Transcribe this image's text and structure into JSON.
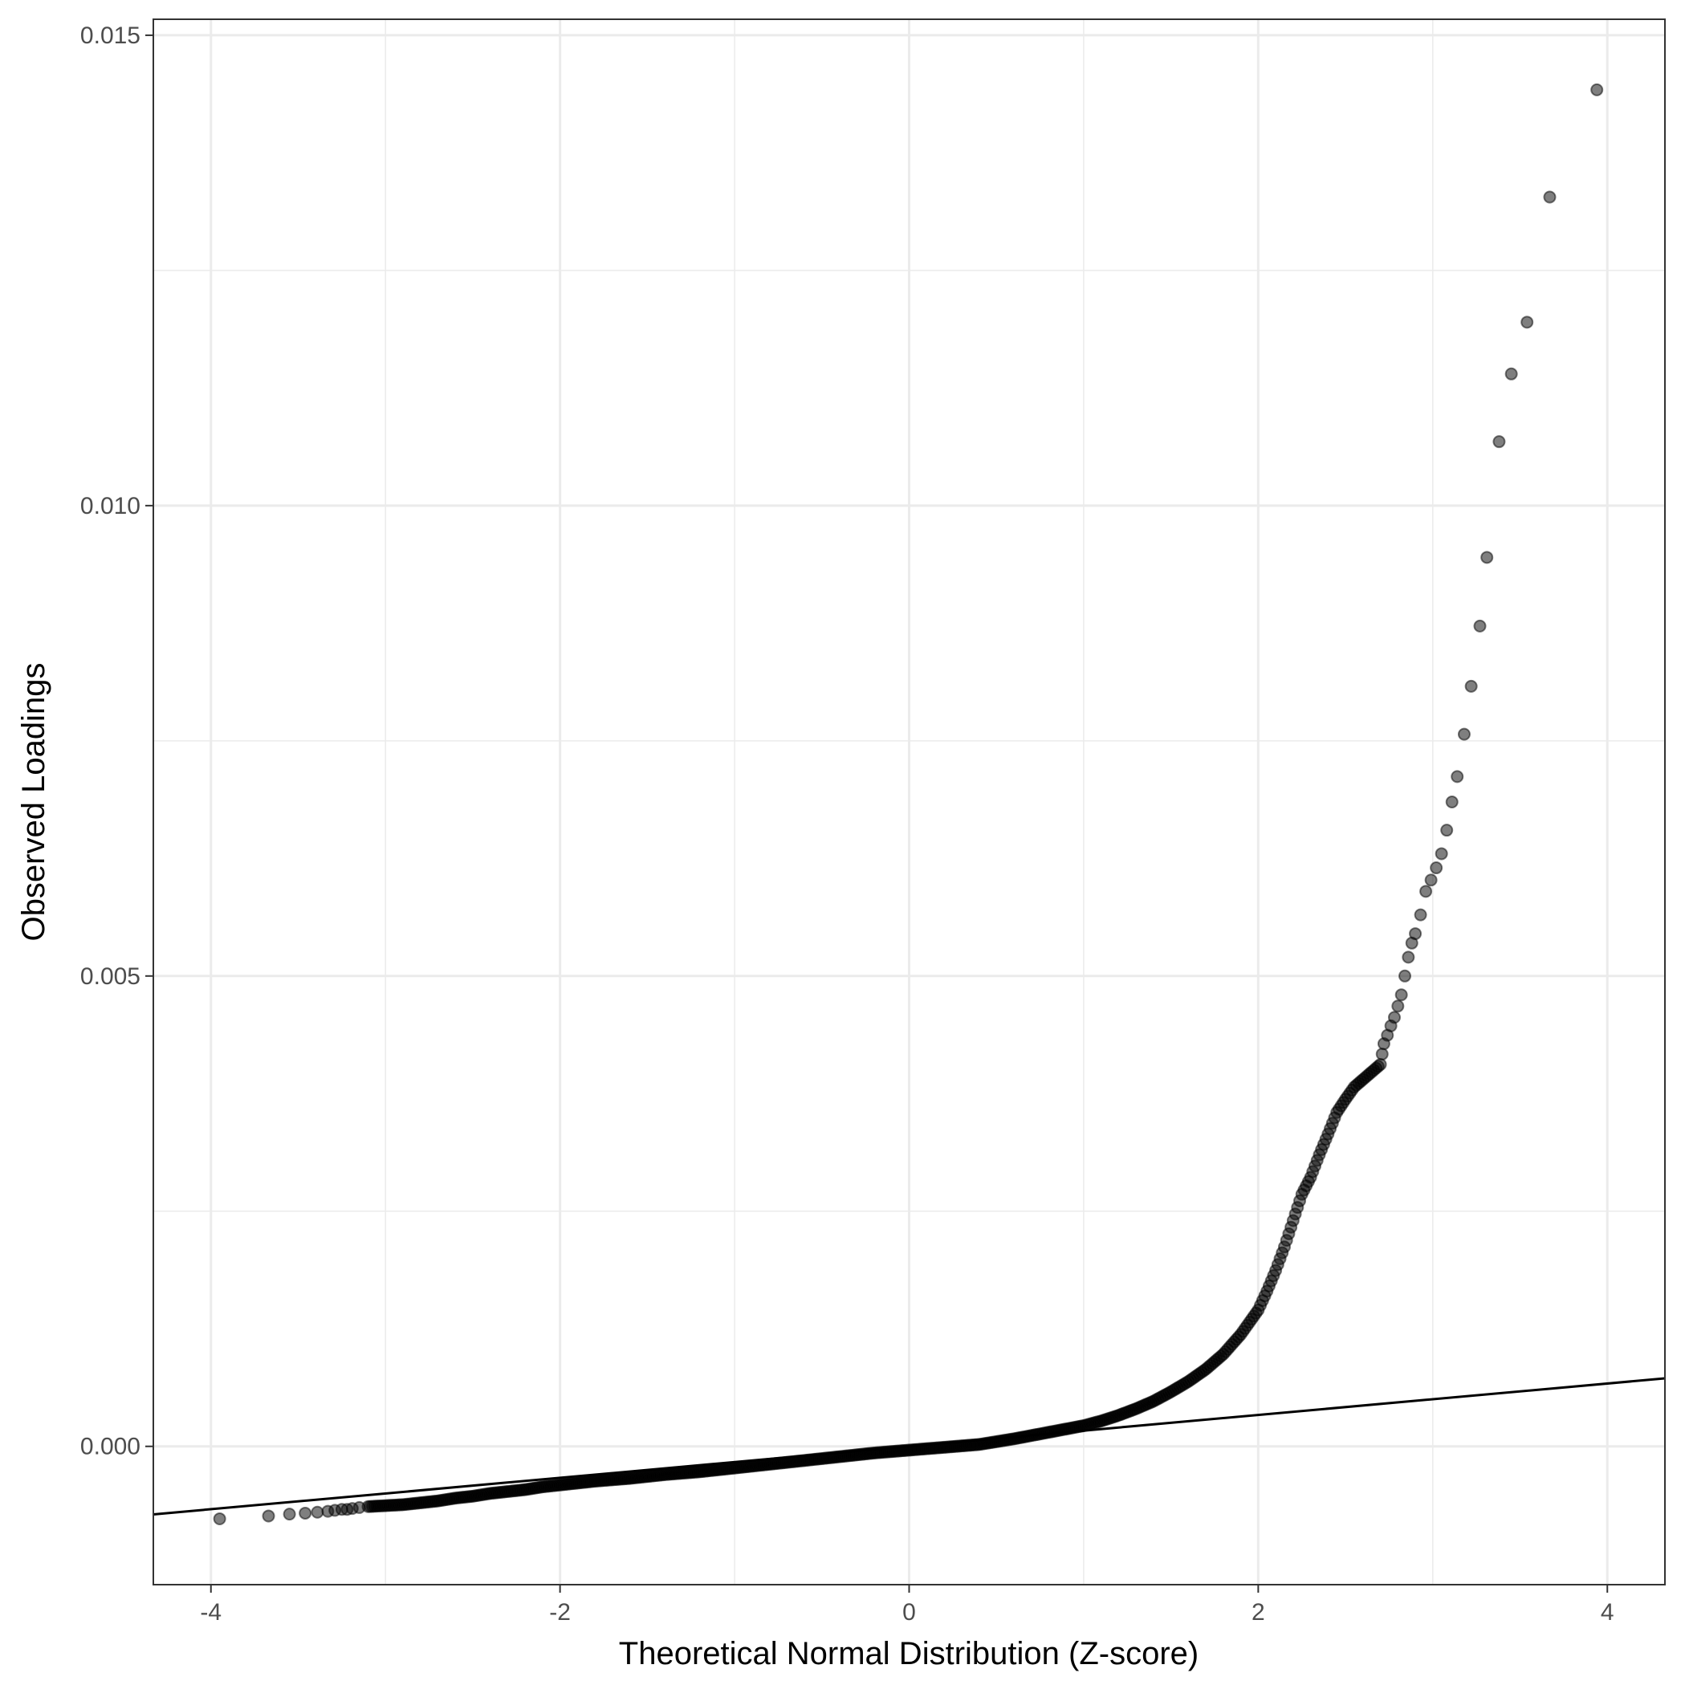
{
  "chart_data": {
    "type": "scatter",
    "title": "",
    "xlabel": "Theoretical Normal Distribution (Z-score)",
    "ylabel": "Observed Loadings",
    "xlim": [
      -4.33,
      4.33
    ],
    "ylim": [
      -0.00147,
      0.01517
    ],
    "x_ticks": [
      -4,
      -2,
      0,
      2,
      4
    ],
    "x_tick_labels": [
      "-4",
      "-2",
      "0",
      "2",
      "4"
    ],
    "y_ticks": [
      0.0,
      0.005,
      0.01,
      0.015
    ],
    "y_tick_labels": [
      "0.000",
      "0.005",
      "0.010",
      "0.015"
    ],
    "grid": true,
    "legend": "none",
    "point_color": "#000000",
    "point_opacity": 0.5,
    "reference_line": {
      "name": "",
      "slope": 0.000167,
      "intercept": 0.0,
      "color": "#000000"
    },
    "series": [
      {
        "points": [
          [
            -3.95,
            -0.00077
          ],
          [
            -3.67,
            -0.00074
          ],
          [
            -3.55,
            -0.00072
          ],
          [
            -3.46,
            -0.00071
          ],
          [
            -3.39,
            -0.0007
          ],
          [
            -3.33,
            -0.00069
          ],
          [
            -3.29,
            -0.00068
          ],
          [
            -3.25,
            -0.00067
          ],
          [
            -3.22,
            -0.00067
          ],
          [
            -3.19,
            -0.00066
          ],
          [
            -3.15,
            -0.00065
          ],
          [
            -3.1,
            -0.00064
          ],
          [
            -3.0,
            -0.00063
          ],
          [
            -2.9,
            -0.00062
          ],
          [
            -2.8,
            -0.0006
          ],
          [
            -2.7,
            -0.00058
          ],
          [
            -2.6,
            -0.00055
          ],
          [
            -2.5,
            -0.00053
          ],
          [
            -2.4,
            -0.0005
          ],
          [
            -2.3,
            -0.00048
          ],
          [
            -2.2,
            -0.00046
          ],
          [
            -2.1,
            -0.00043
          ],
          [
            -2.0,
            -0.00041
          ],
          [
            -1.8,
            -0.00037
          ],
          [
            -1.6,
            -0.00034
          ],
          [
            -1.4,
            -0.0003
          ],
          [
            -1.2,
            -0.00027
          ],
          [
            -1.0,
            -0.00023
          ],
          [
            -0.8,
            -0.00019
          ],
          [
            -0.6,
            -0.00015
          ],
          [
            -0.4,
            -0.00011
          ],
          [
            -0.2,
            -7e-05
          ],
          [
            0.0,
            -4e-05
          ],
          [
            0.2,
            -1e-05
          ],
          [
            0.4,
            2e-05
          ],
          [
            0.6,
            8e-05
          ],
          [
            0.8,
            0.00015
          ],
          [
            1.0,
            0.00022
          ],
          [
            1.1,
            0.00027
          ],
          [
            1.2,
            0.00033
          ],
          [
            1.3,
            0.0004
          ],
          [
            1.4,
            0.00048
          ],
          [
            1.5,
            0.00058
          ],
          [
            1.6,
            0.00069
          ],
          [
            1.7,
            0.00082
          ],
          [
            1.8,
            0.00098
          ],
          [
            1.9,
            0.00119
          ],
          [
            2.0,
            0.00145
          ],
          [
            2.05,
            0.00165
          ],
          [
            2.1,
            0.00187
          ],
          [
            2.15,
            0.00212
          ],
          [
            2.2,
            0.0024
          ],
          [
            2.25,
            0.00268
          ],
          [
            2.3,
            0.00286
          ],
          [
            2.35,
            0.0031
          ],
          [
            2.4,
            0.00332
          ],
          [
            2.45,
            0.00355
          ],
          [
            2.5,
            0.00369
          ],
          [
            2.55,
            0.00382
          ],
          [
            2.6,
            0.0039
          ],
          [
            2.65,
            0.00398
          ],
          [
            2.7,
            0.00406
          ],
          [
            2.72,
            0.00428
          ],
          [
            2.74,
            0.00437
          ],
          [
            2.76,
            0.00447
          ],
          [
            2.78,
            0.00456
          ],
          [
            2.8,
            0.00468
          ],
          [
            2.82,
            0.0048
          ],
          [
            2.84,
            0.005
          ],
          [
            2.86,
            0.0052
          ],
          [
            2.88,
            0.00535
          ],
          [
            2.9,
            0.00545
          ],
          [
            2.93,
            0.00565
          ],
          [
            2.96,
            0.0059
          ],
          [
            2.99,
            0.00602
          ],
          [
            3.02,
            0.00615
          ],
          [
            3.05,
            0.0063
          ],
          [
            3.08,
            0.00655
          ],
          [
            3.11,
            0.00685
          ],
          [
            3.14,
            0.00712
          ],
          [
            3.18,
            0.00757
          ],
          [
            3.22,
            0.00808
          ],
          [
            3.27,
            0.00872
          ],
          [
            3.31,
            0.00945
          ],
          [
            3.38,
            0.01068
          ],
          [
            3.45,
            0.0114
          ],
          [
            3.54,
            0.01195
          ],
          [
            3.67,
            0.01328
          ],
          [
            3.94,
            0.01442
          ]
        ]
      }
    ]
  }
}
